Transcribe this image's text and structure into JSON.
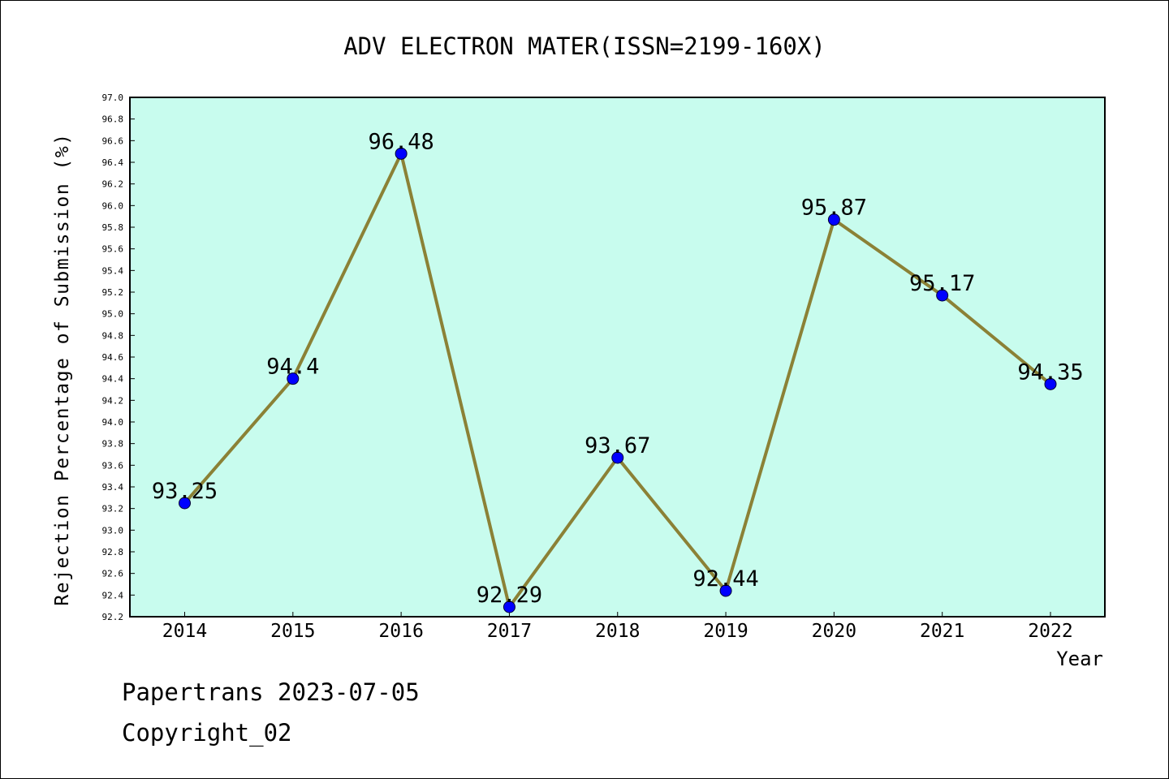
{
  "chart_data": {
    "type": "line",
    "title": "ADV ELECTRON MATER(ISSN=2199-160X)",
    "xlabel": "Year",
    "ylabel": "Rejection Percentage of Submission (%)",
    "categories": [
      "2014",
      "2015",
      "2016",
      "2017",
      "2018",
      "2019",
      "2020",
      "2021",
      "2022"
    ],
    "series": [
      {
        "values": [
          93.25,
          94.4,
          96.48,
          92.29,
          93.67,
          92.44,
          95.87,
          95.17,
          94.35
        ],
        "labels": [
          "93.25",
          "94.4",
          "96.48",
          "92.29",
          "93.67",
          "92.44",
          "95.87",
          "95.17",
          "94.35"
        ]
      }
    ],
    "ylim": [
      92.2,
      97.0
    ],
    "ytick_step": 0.2,
    "grid": false,
    "colors": {
      "plot_background": "#c8fcee",
      "line": "#8b8136",
      "marker": "#0000ff"
    }
  },
  "footer": {
    "line1": "Papertrans 2023-07-05",
    "line2": "Copyright_02"
  }
}
